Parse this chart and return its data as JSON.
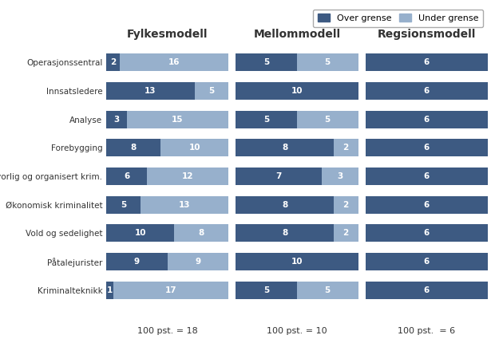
{
  "categories": [
    "Operasjonssentral",
    "Innsatsledere",
    "Analyse",
    "Forebygging",
    "Alvorlig og organisert krim.",
    "Økonomisk kriminalitet",
    "Vold og sedelighet",
    "Påtalejurister",
    "Kriminalteknikk"
  ],
  "models": [
    "Fylkesmodell",
    "Mellommodell",
    "Regsionsmodell"
  ],
  "model_totals": [
    18,
    10,
    6
  ],
  "model_labels": [
    "100 pst. = 18",
    "100 pst. = 10",
    "100 pst.  = 6"
  ],
  "over_grense_color": "#3d5a82",
  "under_grense_color": "#97b0cc",
  "fylkesmodell": {
    "over": [
      2,
      13,
      3,
      8,
      6,
      5,
      10,
      9,
      1
    ],
    "under": [
      16,
      5,
      15,
      10,
      12,
      13,
      8,
      9,
      17
    ]
  },
  "mellommodell": {
    "over": [
      5,
      10,
      5,
      8,
      7,
      8,
      8,
      10,
      5
    ],
    "under": [
      5,
      0,
      5,
      2,
      3,
      2,
      2,
      0,
      5
    ]
  },
  "regsionsmodell": {
    "over": [
      6,
      6,
      6,
      6,
      6,
      6,
      6,
      6,
      6
    ],
    "under": [
      0,
      0,
      0,
      0,
      0,
      0,
      0,
      0,
      0
    ]
  },
  "legend_labels": [
    "Over grense",
    "Under grense"
  ],
  "background_color": "#ffffff",
  "bar_height": 0.62,
  "xlim": 1.0
}
